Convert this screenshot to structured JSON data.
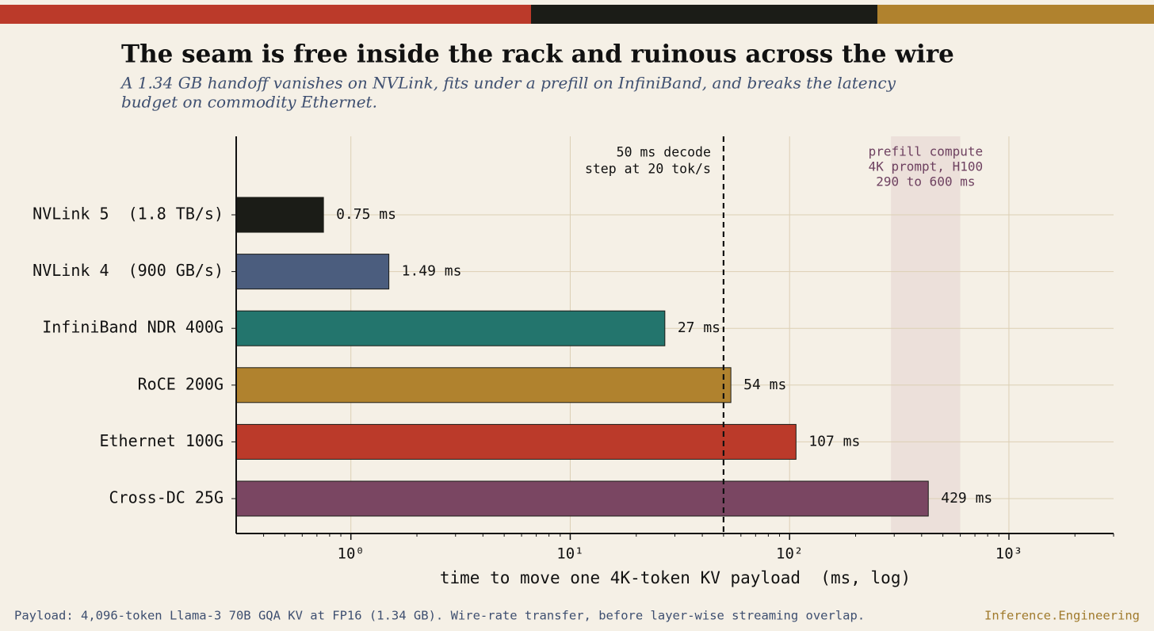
{
  "chart_data": {
    "type": "bar",
    "orientation": "horizontal",
    "title": "The seam is free inside the rack and ruinous across the wire",
    "subtitle": [
      "A 1.34 GB handoff vanishes on NVLink, fits under a prefill on InfiniBand, and breaks the latency",
      "budget on commodity Ethernet."
    ],
    "xlabel": "time to move one 4K-token KV payload  (ms, log)",
    "categories": [
      "NVLink 5  (1.8 TB/s)",
      "NVLink 4  (900 GB/s)",
      "InfiniBand NDR 400G",
      "RoCE 200G",
      "Ethernet 100G",
      "Cross-DC 25G"
    ],
    "values": [
      0.75,
      1.49,
      27,
      54,
      107,
      429
    ],
    "value_labels": [
      "0.75 ms",
      "1.49 ms",
      "27 ms",
      "54 ms",
      "107 ms",
      "429 ms"
    ],
    "colors": [
      "#1b1c17",
      "#4b5d7e",
      "#23756d",
      "#b0822e",
      "#bb3a2a",
      "#7a4662"
    ],
    "log_x": true,
    "xlim": [
      0.3,
      3000
    ],
    "xticks": [
      {
        "value": 1,
        "label": "10⁰"
      },
      {
        "value": 10,
        "label": "10¹"
      },
      {
        "value": 100,
        "label": "10²"
      },
      {
        "value": 1000,
        "label": "10³"
      }
    ],
    "minor_xticks": [
      0.4,
      0.5,
      0.6,
      0.7,
      0.8,
      0.9,
      2,
      3,
      4,
      5,
      6,
      7,
      8,
      9,
      20,
      30,
      40,
      50,
      60,
      70,
      80,
      90,
      200,
      300,
      400,
      500,
      600,
      700,
      800,
      900,
      2000,
      3000
    ],
    "grid": true,
    "reference_line": {
      "value": 50,
      "label": [
        "50 ms decode",
        "step at 20 tok/s"
      ]
    },
    "band": {
      "range": [
        290,
        600
      ],
      "label": [
        "prefill compute",
        "4K prompt, H100",
        "290 to 600 ms"
      ]
    }
  },
  "footer": {
    "note": "Payload: 4,096-token Llama-3 70B GQA KV at FP16 (1.34 GB). Wire-rate transfer, before layer-wise streaming overlap.",
    "brand": "Inference.Engineering"
  }
}
